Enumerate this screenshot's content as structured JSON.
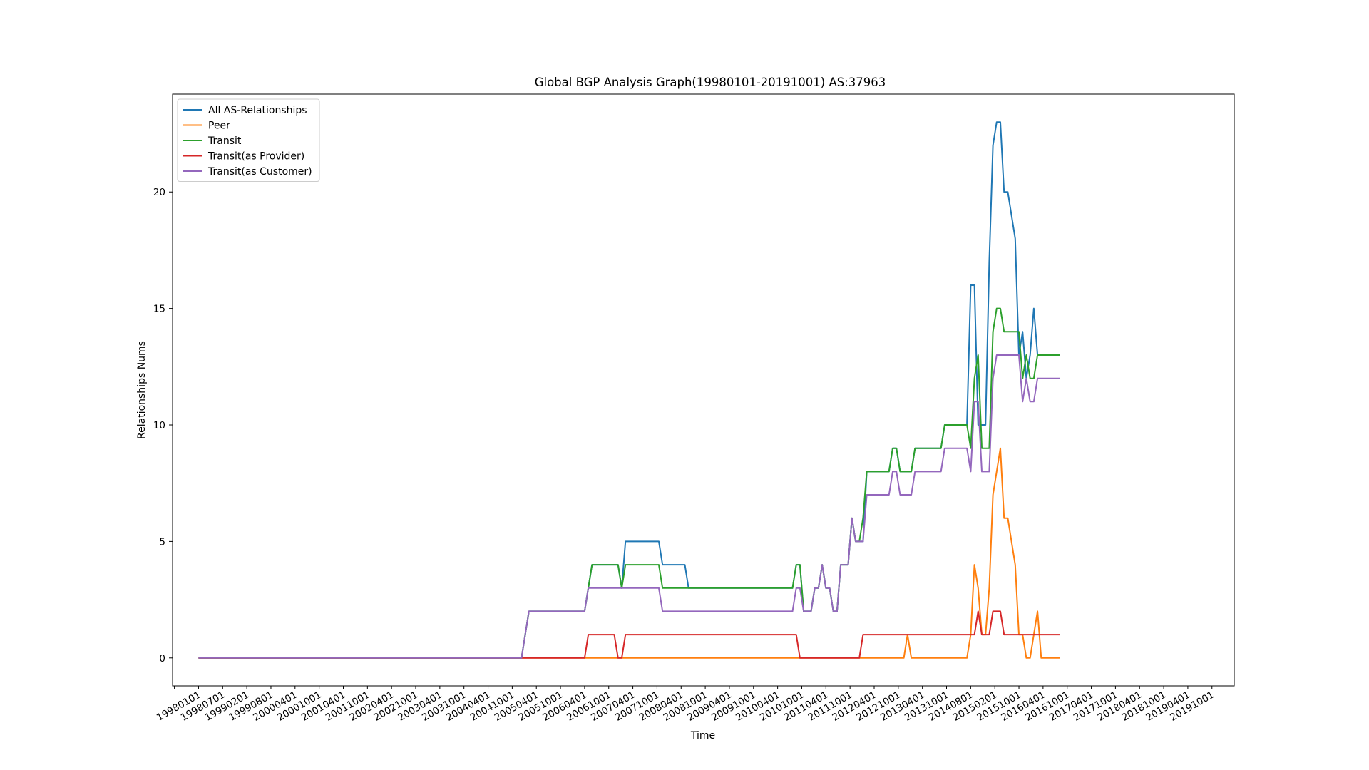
{
  "chart_data": {
    "type": "line",
    "title": "Global BGP Analysis Graph(19980101-20191001) AS:37963",
    "xlabel": "Time",
    "ylabel": "Relationships Nums",
    "ylim": [
      -1.2,
      24.2
    ],
    "yticks": [
      0,
      5,
      10,
      15,
      20
    ],
    "xlim": [
      -7,
      279
    ],
    "legend_position": "top-left",
    "x_tick_labels": [
      "19980101",
      "19980701",
      "19990201",
      "19990801",
      "20000401",
      "20001001",
      "20010401",
      "20011001",
      "20020401",
      "20021001",
      "20030401",
      "20031001",
      "20040401",
      "20041001",
      "20050401",
      "20051001",
      "20060401",
      "20061001",
      "20070401",
      "20071001",
      "20080401",
      "20081001",
      "20090401",
      "20091001",
      "20100401",
      "20101001",
      "20110401",
      "20111001",
      "20120401",
      "20121001",
      "20130401",
      "20131001",
      "20140801",
      "20150201",
      "20151001",
      "20160401",
      "20161001",
      "20170401",
      "20171001",
      "20180401",
      "20181001",
      "20190401",
      "20191001"
    ],
    "series": [
      {
        "name": "All AS-Relationships",
        "color": "#1f77b4",
        "points": [
          [
            0,
            0
          ],
          [
            87,
            0
          ],
          [
            88,
            1
          ],
          [
            89,
            2
          ],
          [
            104,
            2
          ],
          [
            105,
            3
          ],
          [
            106,
            4
          ],
          [
            113,
            4
          ],
          [
            114,
            3
          ],
          [
            115,
            5
          ],
          [
            124,
            5
          ],
          [
            125,
            4
          ],
          [
            131,
            4
          ],
          [
            132,
            3
          ],
          [
            160,
            3
          ],
          [
            161,
            4
          ],
          [
            162,
            4
          ],
          [
            163,
            2
          ],
          [
            165,
            2
          ],
          [
            166,
            3
          ],
          [
            167,
            3
          ],
          [
            168,
            4
          ],
          [
            169,
            3
          ],
          [
            170,
            3
          ],
          [
            171,
            2
          ],
          [
            172,
            2
          ],
          [
            173,
            4
          ],
          [
            175,
            4
          ],
          [
            176,
            6
          ],
          [
            177,
            5
          ],
          [
            179,
            5
          ],
          [
            180,
            8
          ],
          [
            186,
            8
          ],
          [
            187,
            9
          ],
          [
            188,
            9
          ],
          [
            189,
            8
          ],
          [
            192,
            8
          ],
          [
            193,
            9
          ],
          [
            200,
            9
          ],
          [
            201,
            10
          ],
          [
            207,
            10
          ],
          [
            208,
            16
          ],
          [
            209,
            16
          ],
          [
            210,
            10
          ],
          [
            212,
            10
          ],
          [
            213,
            17
          ],
          [
            214,
            22
          ],
          [
            215,
            23
          ],
          [
            216,
            23
          ],
          [
            217,
            20
          ],
          [
            218,
            20
          ],
          [
            220,
            18
          ],
          [
            221,
            13
          ],
          [
            222,
            14
          ],
          [
            223,
            12
          ],
          [
            224,
            13
          ],
          [
            225,
            15
          ],
          [
            226,
            13
          ],
          [
            232,
            13
          ]
        ]
      },
      {
        "name": "Peer",
        "color": "#ff7f0e",
        "points": [
          [
            0,
            0
          ],
          [
            131,
            0
          ],
          [
            132,
            0
          ],
          [
            190,
            0
          ],
          [
            191,
            1
          ],
          [
            192,
            0
          ],
          [
            207,
            0
          ],
          [
            208,
            1
          ],
          [
            209,
            4
          ],
          [
            210,
            3
          ],
          [
            211,
            1
          ],
          [
            212,
            1
          ],
          [
            213,
            3
          ],
          [
            214,
            7
          ],
          [
            215,
            8
          ],
          [
            216,
            9
          ],
          [
            217,
            6
          ],
          [
            218,
            6
          ],
          [
            219,
            5
          ],
          [
            220,
            4
          ],
          [
            221,
            1
          ],
          [
            222,
            1
          ],
          [
            223,
            0
          ],
          [
            224,
            0
          ],
          [
            225,
            1
          ],
          [
            226,
            2
          ],
          [
            227,
            0
          ],
          [
            232,
            0
          ]
        ]
      },
      {
        "name": "Transit",
        "color": "#2ca02c",
        "points": [
          [
            0,
            0
          ],
          [
            87,
            0
          ],
          [
            88,
            1
          ],
          [
            89,
            2
          ],
          [
            104,
            2
          ],
          [
            105,
            3
          ],
          [
            106,
            4
          ],
          [
            113,
            4
          ],
          [
            114,
            3
          ],
          [
            115,
            4
          ],
          [
            124,
            4
          ],
          [
            125,
            3
          ],
          [
            160,
            3
          ],
          [
            161,
            4
          ],
          [
            162,
            4
          ],
          [
            163,
            2
          ],
          [
            165,
            2
          ],
          [
            166,
            3
          ],
          [
            167,
            3
          ],
          [
            168,
            4
          ],
          [
            169,
            3
          ],
          [
            170,
            3
          ],
          [
            171,
            2
          ],
          [
            172,
            2
          ],
          [
            173,
            4
          ],
          [
            175,
            4
          ],
          [
            176,
            6
          ],
          [
            177,
            5
          ],
          [
            178,
            5
          ],
          [
            179,
            6
          ],
          [
            180,
            8
          ],
          [
            186,
            8
          ],
          [
            187,
            9
          ],
          [
            188,
            9
          ],
          [
            189,
            8
          ],
          [
            192,
            8
          ],
          [
            193,
            9
          ],
          [
            200,
            9
          ],
          [
            201,
            10
          ],
          [
            207,
            10
          ],
          [
            208,
            9
          ],
          [
            209,
            12
          ],
          [
            210,
            13
          ],
          [
            211,
            9
          ],
          [
            213,
            9
          ],
          [
            214,
            14
          ],
          [
            215,
            15
          ],
          [
            216,
            15
          ],
          [
            217,
            14
          ],
          [
            221,
            14
          ],
          [
            222,
            12
          ],
          [
            223,
            13
          ],
          [
            224,
            12
          ],
          [
            225,
            12
          ],
          [
            226,
            13
          ],
          [
            232,
            13
          ]
        ]
      },
      {
        "name": "Transit(as Provider)",
        "color": "#d62728",
        "points": [
          [
            0,
            0
          ],
          [
            98,
            0
          ],
          [
            99,
            0
          ],
          [
            100,
            0
          ],
          [
            101,
            0
          ],
          [
            104,
            0
          ],
          [
            105,
            1
          ],
          [
            106,
            1
          ],
          [
            111,
            1
          ],
          [
            112,
            1
          ],
          [
            113,
            0
          ],
          [
            114,
            0
          ],
          [
            115,
            1
          ],
          [
            124,
            1
          ],
          [
            125,
            1
          ],
          [
            159,
            1
          ],
          [
            160,
            1
          ],
          [
            161,
            1
          ],
          [
            162,
            0
          ],
          [
            163,
            0
          ],
          [
            175,
            0
          ],
          [
            176,
            0
          ],
          [
            177,
            0
          ],
          [
            178,
            0
          ],
          [
            179,
            1
          ],
          [
            207,
            1
          ],
          [
            208,
            1
          ],
          [
            209,
            1
          ],
          [
            210,
            2
          ],
          [
            211,
            1
          ],
          [
            212,
            1
          ],
          [
            213,
            1
          ],
          [
            214,
            2
          ],
          [
            215,
            2
          ],
          [
            216,
            2
          ],
          [
            217,
            1
          ],
          [
            222,
            1
          ],
          [
            223,
            1
          ],
          [
            232,
            1
          ]
        ]
      },
      {
        "name": "Transit(as Customer)",
        "color": "#9467bd",
        "points": [
          [
            0,
            0
          ],
          [
            87,
            0
          ],
          [
            88,
            1
          ],
          [
            89,
            2
          ],
          [
            104,
            2
          ],
          [
            105,
            3
          ],
          [
            106,
            3
          ],
          [
            124,
            3
          ],
          [
            125,
            2
          ],
          [
            160,
            2
          ],
          [
            161,
            3
          ],
          [
            162,
            3
          ],
          [
            163,
            2
          ],
          [
            165,
            2
          ],
          [
            166,
            3
          ],
          [
            167,
            3
          ],
          [
            168,
            4
          ],
          [
            169,
            3
          ],
          [
            170,
            3
          ],
          [
            171,
            2
          ],
          [
            172,
            2
          ],
          [
            173,
            4
          ],
          [
            175,
            4
          ],
          [
            176,
            6
          ],
          [
            177,
            5
          ],
          [
            179,
            5
          ],
          [
            180,
            7
          ],
          [
            186,
            7
          ],
          [
            187,
            8
          ],
          [
            188,
            8
          ],
          [
            189,
            7
          ],
          [
            192,
            7
          ],
          [
            193,
            8
          ],
          [
            200,
            8
          ],
          [
            201,
            9
          ],
          [
            207,
            9
          ],
          [
            208,
            8
          ],
          [
            209,
            11
          ],
          [
            210,
            11
          ],
          [
            211,
            8
          ],
          [
            213,
            8
          ],
          [
            214,
            12
          ],
          [
            215,
            13
          ],
          [
            216,
            13
          ],
          [
            217,
            13
          ],
          [
            221,
            13
          ],
          [
            222,
            11
          ],
          [
            223,
            12
          ],
          [
            224,
            11
          ],
          [
            225,
            11
          ],
          [
            226,
            12
          ],
          [
            232,
            12
          ]
        ]
      }
    ]
  }
}
